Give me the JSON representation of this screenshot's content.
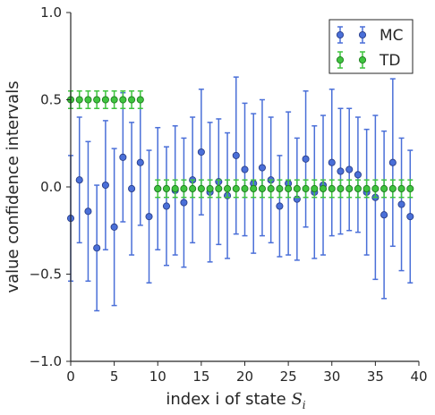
{
  "chart_data": {
    "type": "scatter",
    "title": "",
    "xlabel": "index i of state ",
    "xlabel_math": "S",
    "xlabel_sub": "i",
    "ylabel": "value confidence intervals",
    "xlim": [
      0,
      40
    ],
    "ylim": [
      -1.0,
      1.0
    ],
    "xticks": [
      0,
      5,
      10,
      15,
      20,
      25,
      30,
      35,
      40
    ],
    "xtick_labels": [
      "0",
      "5",
      "10",
      "15",
      "20",
      "25",
      "30",
      "35",
      "40"
    ],
    "yticks": [
      -1.0,
      -0.5,
      0.0,
      0.5,
      1.0
    ],
    "ytick_labels": [
      "−1.0",
      "−0.5",
      "0.0",
      "0.5",
      "1.0"
    ],
    "grid": false,
    "legend_position": "top-right",
    "series": [
      {
        "name": "MC",
        "color": "#4a6fd8",
        "marker_edge": "#2a3f8a",
        "x": [
          0,
          1,
          2,
          3,
          4,
          5,
          6,
          7,
          8,
          9,
          10,
          11,
          12,
          13,
          14,
          15,
          16,
          17,
          18,
          19,
          20,
          21,
          22,
          23,
          24,
          25,
          26,
          27,
          28,
          29,
          30,
          31,
          32,
          33,
          34,
          35,
          36,
          37,
          38,
          39
        ],
        "y": [
          -0.18,
          0.04,
          -0.14,
          -0.35,
          0.01,
          -0.23,
          0.17,
          -0.01,
          0.14,
          -0.17,
          -0.01,
          -0.11,
          -0.02,
          -0.09,
          0.04,
          0.2,
          -0.03,
          0.03,
          -0.05,
          0.18,
          0.1,
          0.02,
          0.11,
          0.04,
          -0.11,
          0.02,
          -0.07,
          0.16,
          -0.03,
          0.01,
          0.14,
          0.09,
          0.1,
          0.07,
          -0.03,
          -0.06,
          -0.16,
          0.14,
          -0.1,
          -0.17
        ],
        "err": [
          0.36,
          0.36,
          0.4,
          0.36,
          0.37,
          0.45,
          0.37,
          0.38,
          0.36,
          0.38,
          0.35,
          0.34,
          0.37,
          0.37,
          0.36,
          0.36,
          0.4,
          0.36,
          0.36,
          0.45,
          0.38,
          0.4,
          0.39,
          0.36,
          0.29,
          0.41,
          0.35,
          0.39,
          0.38,
          0.4,
          0.42,
          0.36,
          0.35,
          0.33,
          0.36,
          0.47,
          0.48,
          0.48,
          0.38,
          0.38
        ]
      },
      {
        "name": "TD",
        "color": "#3fc43f",
        "marker_edge": "#1f7a1f",
        "x": [
          0,
          1,
          2,
          3,
          4,
          5,
          6,
          7,
          8,
          10,
          11,
          12,
          13,
          14,
          15,
          16,
          17,
          18,
          19,
          20,
          21,
          22,
          23,
          24,
          25,
          26,
          27,
          28,
          29,
          30,
          31,
          32,
          33,
          34,
          35,
          36,
          37,
          38,
          39
        ],
        "y": [
          0.5,
          0.5,
          0.5,
          0.5,
          0.5,
          0.5,
          0.5,
          0.5,
          0.5,
          -0.01,
          -0.01,
          -0.01,
          -0.01,
          -0.01,
          -0.01,
          -0.01,
          -0.01,
          -0.01,
          -0.01,
          -0.01,
          -0.01,
          -0.01,
          -0.01,
          -0.01,
          -0.01,
          -0.01,
          -0.01,
          -0.01,
          -0.01,
          -0.01,
          -0.01,
          -0.01,
          -0.01,
          -0.01,
          -0.01,
          -0.01,
          -0.01,
          -0.01,
          -0.01
        ],
        "err": [
          0.05,
          0.05,
          0.05,
          0.05,
          0.05,
          0.05,
          0.05,
          0.05,
          0.05,
          0.05,
          0.05,
          0.05,
          0.05,
          0.05,
          0.05,
          0.05,
          0.05,
          0.05,
          0.05,
          0.05,
          0.05,
          0.05,
          0.05,
          0.05,
          0.05,
          0.05,
          0.05,
          0.05,
          0.05,
          0.05,
          0.05,
          0.05,
          0.05,
          0.05,
          0.05,
          0.05,
          0.05,
          0.05,
          0.05
        ]
      }
    ]
  }
}
